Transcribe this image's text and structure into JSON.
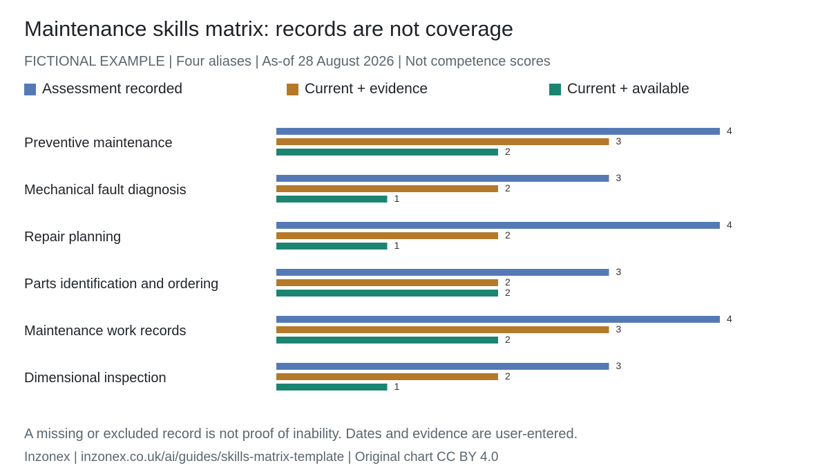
{
  "title": "Maintenance skills matrix: records are not coverage",
  "subtitle": "FICTIONAL EXAMPLE | Four aliases | As-of 28 August 2026 | Not competence scores",
  "note": "A missing or excluded record is not proof of inability. Dates and evidence are user-entered.",
  "source": "Inzonex | inzonex.co.uk/ai/guides/skills-matrix-template | Original chart CC BY 4.0",
  "colors": {
    "assessment": "#5479b5",
    "evidence": "#b5792a",
    "available": "#1b8571"
  },
  "chart_data": {
    "type": "bar",
    "orientation": "horizontal",
    "categories": [
      "Preventive maintenance",
      "Mechanical fault diagnosis",
      "Repair planning",
      "Parts identification and ordering",
      "Maintenance work records",
      "Dimensional inspection"
    ],
    "series": [
      {
        "name": "Assessment recorded",
        "color": "#5479b5",
        "values": [
          4,
          3,
          4,
          3,
          4,
          3
        ]
      },
      {
        "name": "Current + evidence",
        "color": "#b5792a",
        "values": [
          3,
          2,
          2,
          2,
          3,
          2
        ]
      },
      {
        "name": "Current + available",
        "color": "#1b8571",
        "values": [
          2,
          1,
          1,
          2,
          2,
          1
        ]
      }
    ],
    "xlim": [
      0,
      4
    ],
    "grid": false,
    "legend": "top",
    "data_labels": true
  }
}
